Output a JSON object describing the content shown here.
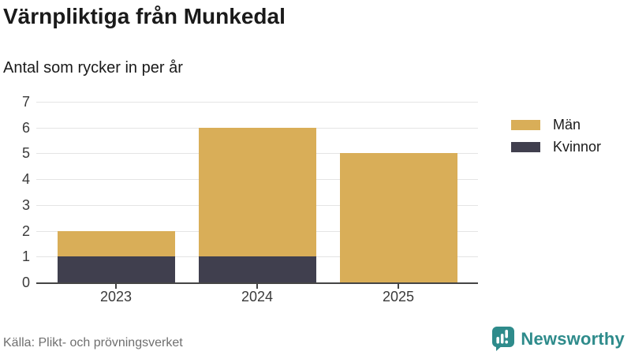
{
  "header": {
    "title": "Värnpliktiga från Munkedal",
    "subtitle": "Antal som rycker in per år"
  },
  "chart_data": {
    "type": "bar",
    "stacked": true,
    "title": "Värnpliktiga från Munkedal",
    "subtitle": "Antal som rycker in per år",
    "categories": [
      "2023",
      "2024",
      "2025"
    ],
    "series": [
      {
        "name": "Män",
        "color": "#d9ae58",
        "values": [
          1,
          5,
          5
        ]
      },
      {
        "name": "Kvinnor",
        "color": "#403f4e",
        "values": [
          1,
          1,
          0
        ]
      }
    ],
    "totals": [
      2,
      6,
      5
    ],
    "xlabel": "",
    "ylabel": "",
    "ylim": [
      0,
      7
    ],
    "yticks": [
      0,
      1,
      2,
      3,
      4,
      5,
      6,
      7
    ],
    "grid": "horizontal",
    "legend_position": "right"
  },
  "footer": {
    "source": "Källa: Plikt- och prövningsverket"
  },
  "brand": {
    "name": "Newsworthy",
    "color": "#2e8b8b",
    "icon": "bar-chart-speech-bubble-icon"
  },
  "colors": {
    "background": "#ffffff",
    "text": "#1a1a1a",
    "axis": "#454545",
    "grid": "#e4e4e4",
    "tick_label": "#3a3a3a",
    "source_text": "#6f6f6f"
  }
}
